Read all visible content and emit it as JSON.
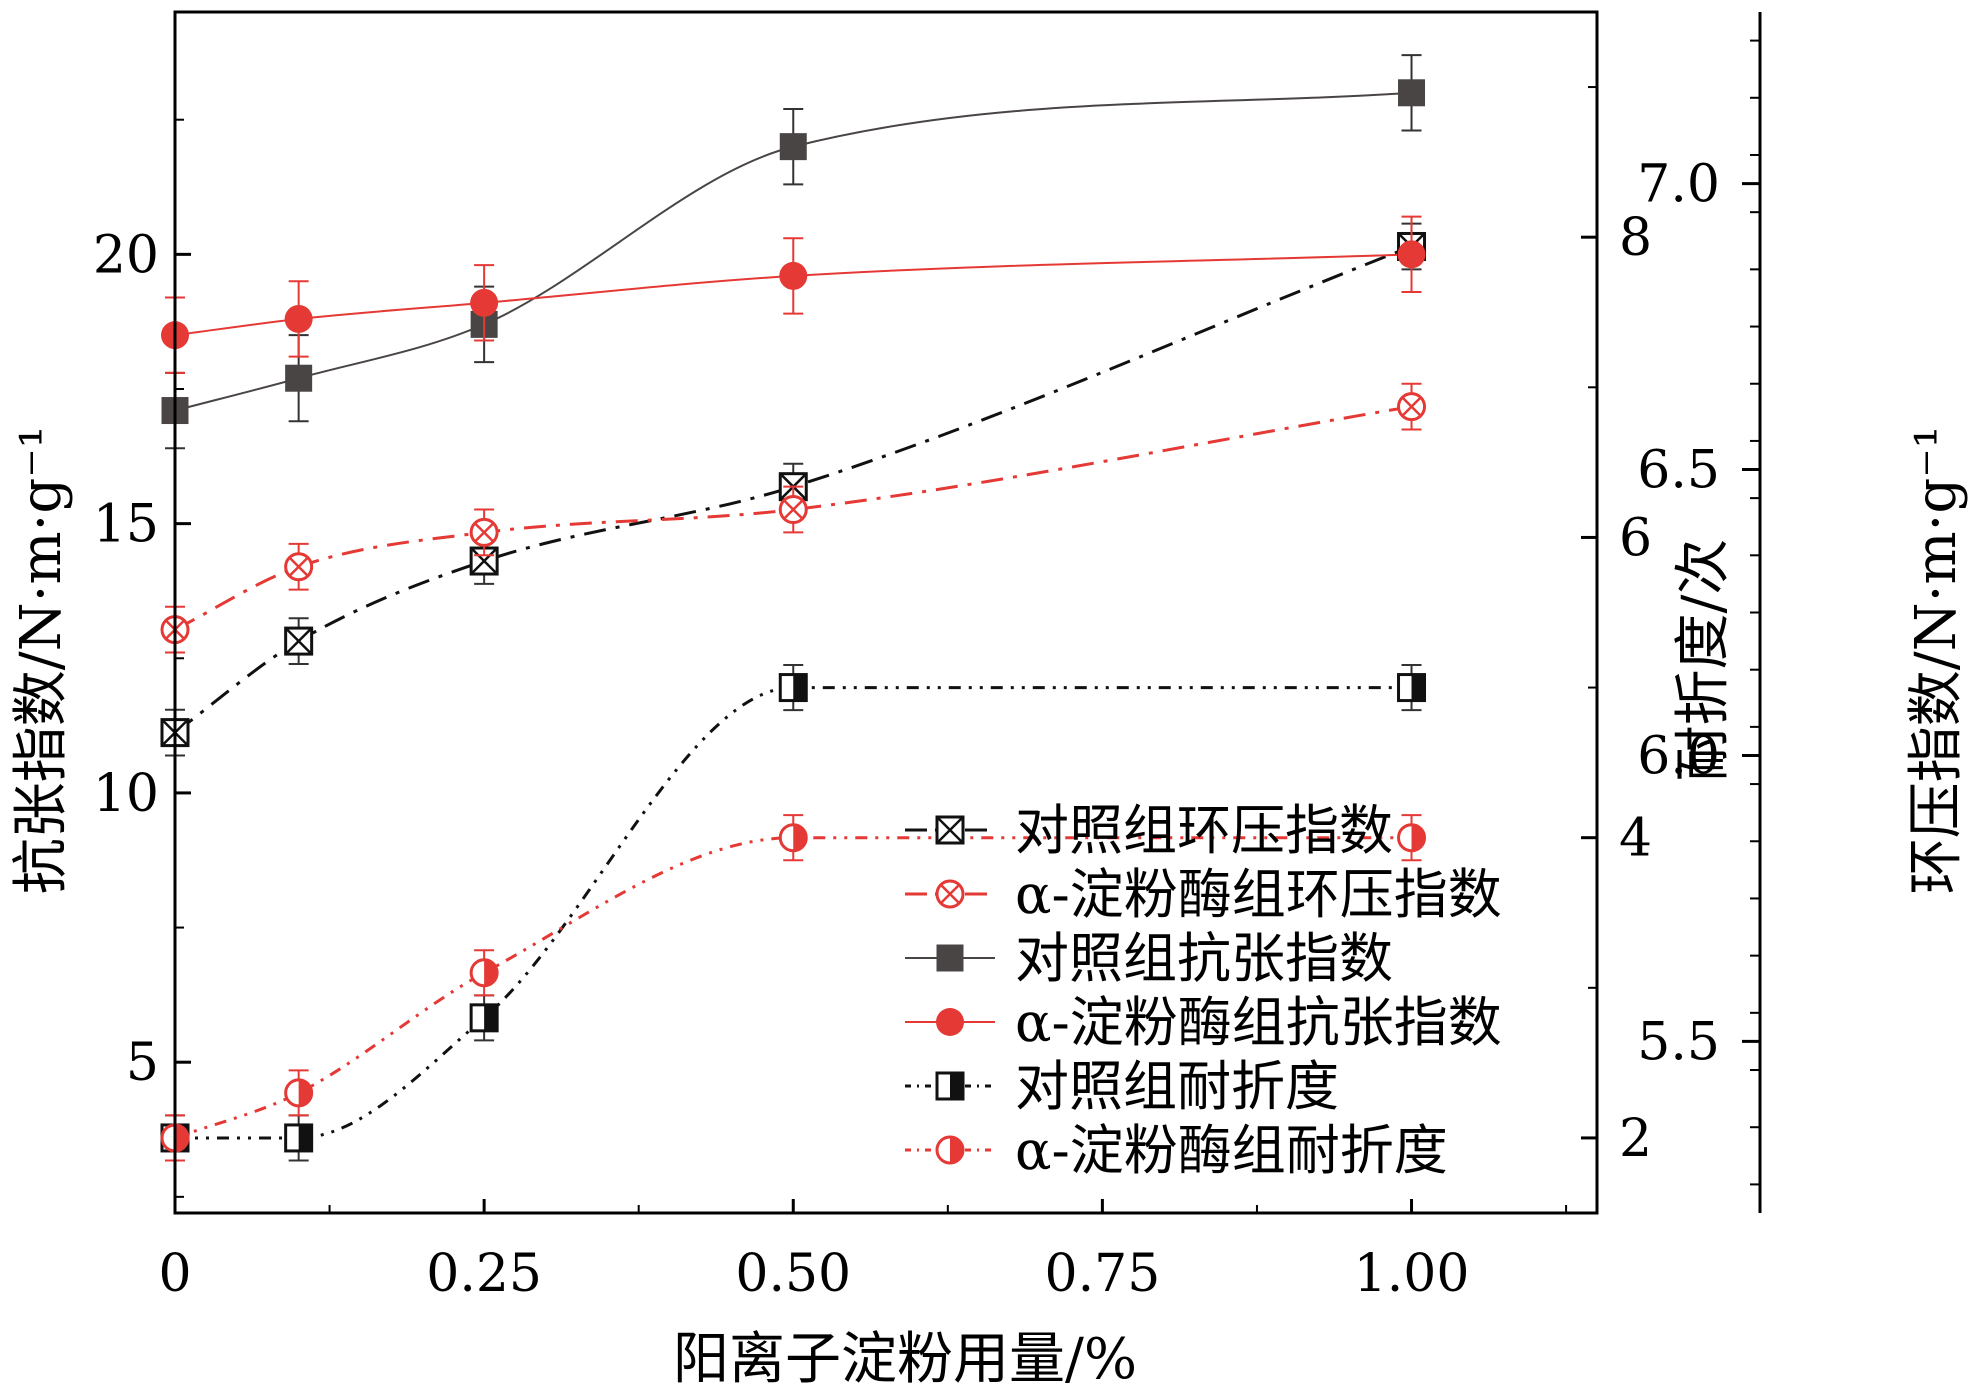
{
  "chart_data": {
    "type": "line",
    "x": [
      0,
      0.1,
      0.25,
      0.5,
      1.0
    ],
    "xlabel": "阳离子淀粉用量/%",
    "xlim": [
      0,
      1.15
    ],
    "xticks": [
      "0",
      "0.25",
      "0.50",
      "0.75",
      "1.00"
    ],
    "axes": {
      "left": {
        "label": "抗张指数/N·m·g⁻¹",
        "lim": [
          2.2,
          24.5
        ],
        "ticks": [
          "5",
          "10",
          "15",
          "20"
        ]
      },
      "right1": {
        "label": "耐折度/次",
        "lim": [
          1.5,
          9.5
        ],
        "ticks": [
          "2",
          "4",
          "6",
          "8"
        ]
      },
      "right2": {
        "label": "环压指数/N·m·g⁻¹",
        "lim": [
          5.2,
          7.3
        ],
        "ticks": [
          "5.5",
          "6.0",
          "6.5",
          "7.0"
        ]
      }
    },
    "series": [
      {
        "name": "对照组环压指数",
        "axis": "right2",
        "color": "#111111",
        "style": "dashdot",
        "marker": "square-x",
        "values": [
          6.04,
          6.2,
          6.34,
          6.47,
          6.89
        ],
        "errors": [
          0.04,
          0.04,
          0.04,
          0.04,
          0.04
        ]
      },
      {
        "name": "α-淀粉酶组环压指数",
        "axis": "right2",
        "color": "#e53935",
        "style": "dashdot",
        "marker": "circle-x",
        "values": [
          6.22,
          6.33,
          6.39,
          6.43,
          6.61
        ],
        "errors": [
          0.04,
          0.04,
          0.04,
          0.04,
          0.04
        ]
      },
      {
        "name": "对照组抗张指数",
        "axis": "left",
        "color": "#4a4545",
        "style": "solid",
        "marker": "square-filled",
        "values": [
          17.1,
          17.7,
          18.7,
          22.0,
          23.0
        ],
        "errors": [
          0.7,
          0.8,
          0.7,
          0.7,
          0.7
        ]
      },
      {
        "name": "α-淀粉酶组抗张指数",
        "axis": "left",
        "color": "#e53935",
        "style": "solid",
        "marker": "circle-filled",
        "values": [
          18.5,
          18.8,
          19.1,
          19.6,
          20.0
        ],
        "errors": [
          0.7,
          0.7,
          0.7,
          0.7,
          0.7
        ]
      },
      {
        "name": "对照组耐折度",
        "axis": "right1",
        "color": "#111111",
        "style": "dashdotdot",
        "marker": "square-half",
        "values": [
          2.0,
          2.0,
          2.8,
          5.0,
          5.0
        ],
        "errors": [
          0.15,
          0.15,
          0.15,
          0.15,
          0.15
        ]
      },
      {
        "name": "α-淀粉酶组耐折度",
        "axis": "right1",
        "color": "#e53935",
        "style": "dashdotdot",
        "marker": "circle-half",
        "values": [
          2.0,
          2.3,
          3.1,
          4.0,
          4.0
        ],
        "errors": [
          0.15,
          0.15,
          0.15,
          0.15,
          0.15
        ]
      }
    ],
    "legend_position": "bottom-right",
    "grid": false
  }
}
